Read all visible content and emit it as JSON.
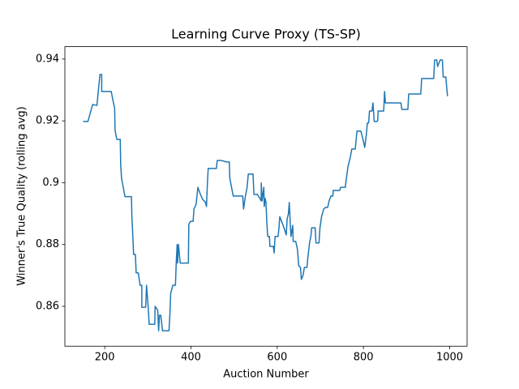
{
  "chart_data": {
    "type": "line",
    "title": "Learning Curve Proxy (TS-SP)",
    "xlabel": "Auction Number",
    "ylabel": "Winner's True Quality (rolling avg)",
    "xlim": [
      107.6,
      1040.4
    ],
    "xticks": [
      200,
      400,
      600,
      800,
      1000
    ],
    "ylim": [
      0.8471,
      0.944
    ],
    "yticks": [
      0.86,
      0.88,
      0.9,
      0.92,
      0.94
    ],
    "grid": false,
    "series": [
      {
        "color": "#1f77b4",
        "x": [
          150,
          161,
          172,
          182,
          185,
          189,
          193,
          193,
          215,
          223,
          224,
          228,
          236,
          237,
          239,
          247,
          262,
          263,
          265,
          267,
          271,
          273,
          278,
          282,
          286,
          286,
          295,
          297,
          301,
          303,
          316,
          317,
          323,
          325,
          327,
          330,
          334,
          349,
          351,
          353,
          358,
          364,
          366,
          368,
          369,
          371,
          375,
          394,
          395,
          399,
          405,
          407,
          412,
          416,
          422,
          427,
          433,
          436,
          438,
          440,
          459,
          461,
          470,
          483,
          489,
          490,
          498,
          520,
          522,
          526,
          530,
          533,
          544,
          546,
          554,
          559,
          563,
          563,
          565,
          569,
          570,
          572,
          574,
          576,
          578,
          582,
          583,
          591,
          593,
          595,
          602,
          604,
          606,
          613,
          617,
          621,
          623,
          626,
          628,
          630,
          632,
          636,
          637,
          643,
          647,
          650,
          654,
          656,
          660,
          663,
          669,
          671,
          675,
          678,
          680,
          688,
          690,
          697,
          699,
          703,
          708,
          712,
          717,
          721,
          725,
          729,
          730,
          745,
          747,
          758,
          760,
          764,
          770,
          773,
          781,
          783,
          785,
          794,
          799,
          803,
          807,
          809,
          812,
          814,
          820,
          822,
          823,
          825,
          831,
          833,
          834,
          847,
          849,
          851,
          864,
          887,
          889,
          903,
          905,
          933,
          935,
          963,
          965,
          970,
          972,
          978,
          983,
          985,
          991,
          995
        ],
        "values": [
          0.9198,
          0.9198,
          0.9253,
          0.925,
          0.9295,
          0.935,
          0.935,
          0.9295,
          0.9295,
          0.924,
          0.917,
          0.914,
          0.914,
          0.906,
          0.9015,
          0.8955,
          0.8955,
          0.889,
          0.8833,
          0.8768,
          0.8768,
          0.8708,
          0.8708,
          0.8668,
          0.8668,
          0.8597,
          0.8597,
          0.8668,
          0.8595,
          0.8542,
          0.8542,
          0.86,
          0.8587,
          0.8521,
          0.8571,
          0.8571,
          0.8521,
          0.8521,
          0.8568,
          0.8642,
          0.8668,
          0.8668,
          0.8747,
          0.88,
          0.874,
          0.88,
          0.874,
          0.874,
          0.8865,
          0.8875,
          0.8875,
          0.8915,
          0.893,
          0.8985,
          0.8962,
          0.8946,
          0.8938,
          0.8923,
          0.8993,
          0.9046,
          0.9046,
          0.9072,
          0.9072,
          0.9067,
          0.9067,
          0.9015,
          0.8957,
          0.8957,
          0.8915,
          0.8955,
          0.8983,
          0.9028,
          0.9028,
          0.8962,
          0.8962,
          0.8951,
          0.8941,
          0.8999,
          0.8941,
          0.8985,
          0.8923,
          0.8949,
          0.8936,
          0.887,
          0.8826,
          0.8826,
          0.8794,
          0.8794,
          0.8773,
          0.8826,
          0.8826,
          0.8852,
          0.889,
          0.8865,
          0.8849,
          0.8831,
          0.8883,
          0.8899,
          0.8936,
          0.8878,
          0.8826,
          0.8862,
          0.881,
          0.881,
          0.8784,
          0.8731,
          0.8726,
          0.8687,
          0.87,
          0.8726,
          0.8726,
          0.8757,
          0.8805,
          0.8826,
          0.8854,
          0.8854,
          0.8805,
          0.8805,
          0.8852,
          0.8891,
          0.8915,
          0.892,
          0.892,
          0.8944,
          0.8957,
          0.8957,
          0.8975,
          0.8975,
          0.8985,
          0.8985,
          0.9009,
          0.9051,
          0.9085,
          0.9109,
          0.9109,
          0.9138,
          0.9167,
          0.9167,
          0.914,
          0.9114,
          0.9159,
          0.9193,
          0.9193,
          0.9232,
          0.9232,
          0.9258,
          0.924,
          0.9198,
          0.9198,
          0.92,
          0.9232,
          0.9232,
          0.9295,
          0.9258,
          0.9258,
          0.9258,
          0.9237,
          0.9237,
          0.9287,
          0.9287,
          0.9337,
          0.9337,
          0.9397,
          0.9397,
          0.9376,
          0.9397,
          0.9397,
          0.9342,
          0.9342,
          0.928
        ]
      }
    ]
  }
}
